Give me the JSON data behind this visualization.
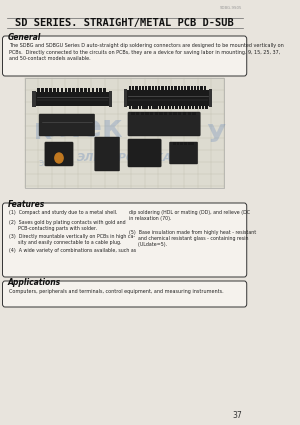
{
  "bg_color": "#e8e4dd",
  "title": "SD SERIES. STRAIGHT/METAL PCB D-SUB",
  "title_fontsize": 7.5,
  "page_number": "37",
  "general_heading": "General",
  "general_text": "The SDBG and SDBGU Series D auto-straight dip soldering connectors are designed to be mounted vertically on\nPCBs.  Directly connected to the circuits on PCBs, they are a device for saving labor in mounting. 9, 15, 25, 37,\nand 50-contact models available.",
  "features_heading": "Features",
  "features_left_1": "(1)  Compact and sturdy due to a metal shell.",
  "features_left_2": "(2)  Saves gold by plating contacts with gold and\n      PCB-contacting parts with solder.",
  "features_left_3": "(3)  Directly mountable vertically on PCBs in high ca-\n      sity and easily connectable to a cable plug.",
  "features_left_4": "(4)  A wide variety of combinations available, such as",
  "features_right_1": "dip soldering (HDL or mating (DD), and relieve (DC\nin relaxation (70).",
  "features_right_2": "(5)  Base insulation made from highly heat - resistant\n      and chemical resistant glass - containing resin\n      (ULdate=5).",
  "applications_heading": "Applications",
  "applications_text": "Computers, peripherals and terminals, control equipment, and measuring instruments.",
  "catalog_num": "SDBG-9S05",
  "header_line_color": "#666666",
  "box_bg": "#f5f2ed",
  "box_border": "#333333",
  "photo_bg": "#d4d0c0",
  "photo_grid_color": "#aaaaaa",
  "watermark_color_blue": "#6688bb",
  "watermark_alpha": 0.3,
  "page_bg_outer": "#c8c4ba"
}
